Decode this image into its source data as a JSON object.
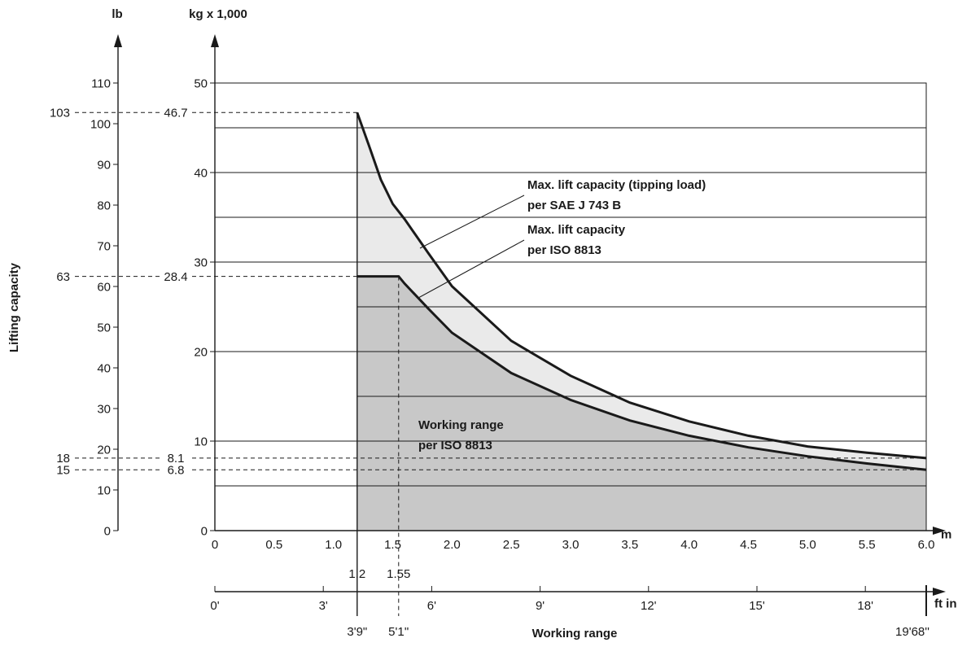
{
  "chart_data": {
    "type": "area",
    "x_unit": "m",
    "y_unit_primary": "kg x 1,000",
    "y_unit_secondary": "lb",
    "ylabel": "Lifting capacity",
    "xlabel": "Working range",
    "x_unit_secondary": "ft in",
    "xlim": [
      0,
      6.0
    ],
    "ylim": [
      0,
      50
    ],
    "lb_ylim": [
      0,
      110
    ],
    "x_ticks": [
      "0",
      "0.5",
      "1.0",
      "1.5",
      "2.0",
      "2.5",
      "3.0",
      "3.5",
      "4.0",
      "4.5",
      "5.0",
      "5.5",
      "6.0"
    ],
    "y_ticks_kg": [
      "0",
      "10",
      "20",
      "30",
      "40",
      "50"
    ],
    "y_ticks_lb": [
      "0",
      "10",
      "20",
      "30",
      "40",
      "50",
      "60",
      "70",
      "80",
      "90",
      "100",
      "110"
    ],
    "ft_ticks": [
      {
        "label": "0'",
        "m": 0
      },
      {
        "label": "3'",
        "m": 0.9144
      },
      {
        "label": "6'",
        "m": 1.8288
      },
      {
        "label": "9'",
        "m": 2.7432
      },
      {
        "label": "12'",
        "m": 3.6576
      },
      {
        "label": "15'",
        "m": 4.572
      },
      {
        "label": "18'",
        "m": 5.4864
      }
    ],
    "special_x": [
      {
        "m": 1.2,
        "m_label": "1.2",
        "ft_label": "3'9\""
      },
      {
        "m": 1.55,
        "m_label": "1.55",
        "ft_label": "5'1''"
      },
      {
        "m": 6.0,
        "m_label": "",
        "ft_label": "19'68''"
      }
    ],
    "reference_values": [
      {
        "kg": 46.7,
        "kg_label": "46.7",
        "lb_label": "103"
      },
      {
        "kg": 28.4,
        "kg_label": "28.4",
        "lb_label": "63"
      },
      {
        "kg": 8.1,
        "kg_label": "8.1",
        "lb_label": "18"
      },
      {
        "kg": 6.8,
        "kg_label": "6.8",
        "lb_label": "15"
      }
    ],
    "series": [
      {
        "name": "Max. lift capacity (tipping load) per SAE J 743 B",
        "color": "#eaeaea",
        "x": [
          1.2,
          1.3,
          1.4,
          1.5,
          1.6,
          1.8,
          2.0,
          2.5,
          3.0,
          3.5,
          4.0,
          4.5,
          5.0,
          5.5,
          6.0
        ],
        "y": [
          46.7,
          43.0,
          39.2,
          36.5,
          34.8,
          31.0,
          27.3,
          21.2,
          17.3,
          14.3,
          12.2,
          10.6,
          9.4,
          8.7,
          8.1
        ]
      },
      {
        "name": "Max. lift capacity per ISO 8813",
        "color": "#c8c8c8",
        "x": [
          1.2,
          1.55,
          1.6,
          1.8,
          2.0,
          2.5,
          3.0,
          3.5,
          4.0,
          4.5,
          5.0,
          5.5,
          6.0
        ],
        "y": [
          28.4,
          28.4,
          27.6,
          24.8,
          22.1,
          17.6,
          14.6,
          12.3,
          10.6,
          9.3,
          8.3,
          7.5,
          6.8
        ]
      }
    ],
    "annotations": [
      {
        "line1": "Max. lift capacity (tipping load)",
        "line2": "per SAE J 743 B"
      },
      {
        "line1": "Max. lift capacity",
        "line2": "per ISO 8813"
      },
      {
        "line1": "Working range",
        "line2": "per ISO 8813"
      }
    ]
  }
}
